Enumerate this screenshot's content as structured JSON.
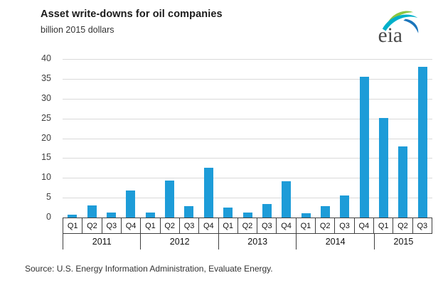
{
  "header": {
    "title": "Asset write-downs for oil companies",
    "subtitle": "billion 2015 dollars"
  },
  "logo": {
    "text": "eia",
    "colors": {
      "leaf_green": "#8cc640",
      "arc_teal": "#00b0ca",
      "arc_blue": "#1b75bb",
      "text_gray": "#4a4a4a"
    }
  },
  "footer": {
    "source": "Source:  U.S. Energy Information Administration, Evaluate Energy."
  },
  "chart_data": {
    "type": "bar",
    "title": "Asset write-downs for oil companies",
    "ylabel": "billion 2015 dollars",
    "xlabel": "",
    "ylim": [
      0,
      40
    ],
    "ytick_step": 5,
    "grid": true,
    "legend": "none",
    "bar_color": "#1d9cd8",
    "gridline_color": "#d9d9d9",
    "axis_box_border_color": "#3f3f3f",
    "groups": [
      {
        "year": "2011",
        "quarters": [
          "Q1",
          "Q2",
          "Q3",
          "Q4"
        ],
        "values": [
          0.7,
          3.0,
          1.2,
          6.8
        ]
      },
      {
        "year": "2012",
        "quarters": [
          "Q1",
          "Q2",
          "Q3",
          "Q4"
        ],
        "values": [
          1.2,
          9.4,
          2.8,
          12.5
        ]
      },
      {
        "year": "2013",
        "quarters": [
          "Q1",
          "Q2",
          "Q3",
          "Q4"
        ],
        "values": [
          2.5,
          1.2,
          3.4,
          9.1
        ]
      },
      {
        "year": "2014",
        "quarters": [
          "Q1",
          "Q2",
          "Q3",
          "Q4"
        ],
        "values": [
          1.1,
          2.9,
          5.5,
          35.6
        ]
      },
      {
        "year": "2015",
        "quarters": [
          "Q1",
          "Q2",
          "Q3"
        ],
        "values": [
          25.2,
          18.0,
          38.1
        ]
      }
    ]
  }
}
